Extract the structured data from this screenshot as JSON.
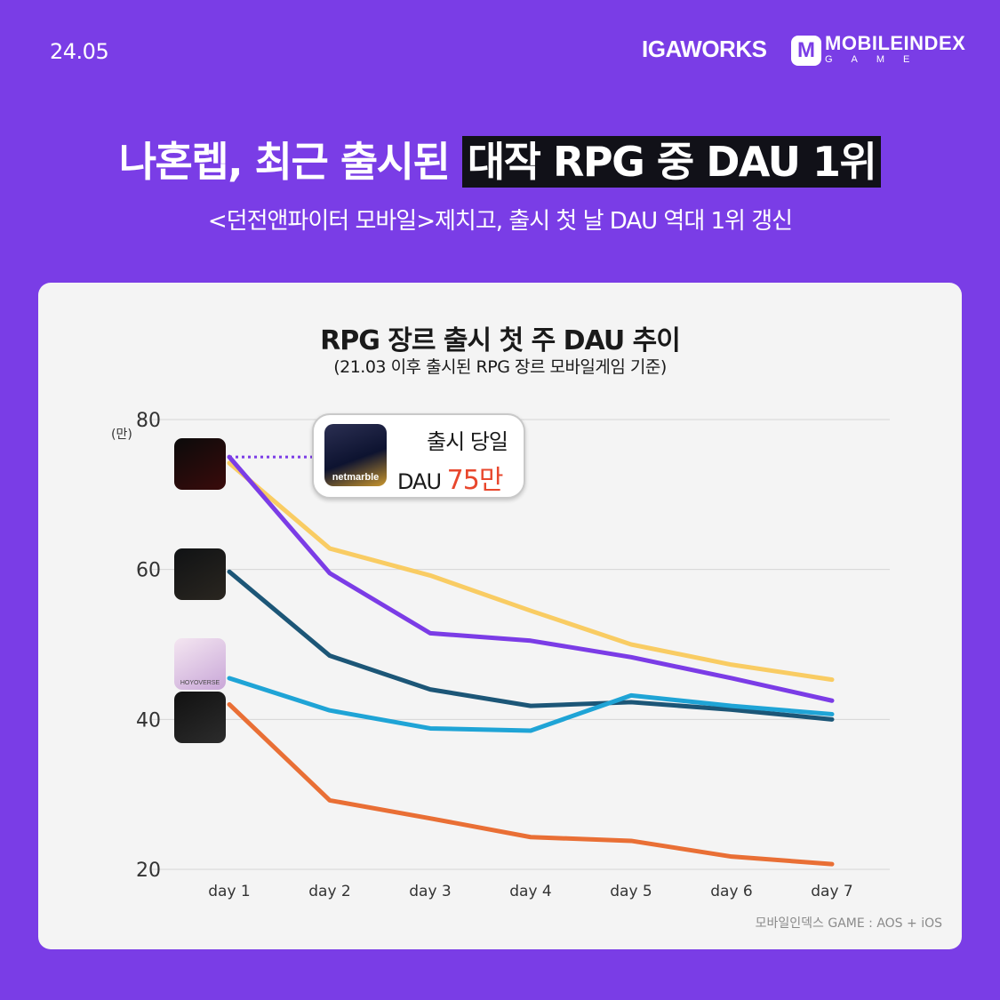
{
  "header": {
    "date": "24.05",
    "brand_iga": "IGAWORKS",
    "brand_mi_logo": "M",
    "brand_mi": "MOBILEINDEX",
    "brand_mi_sub": "GAME"
  },
  "headline": {
    "part1": "나혼렙, 최근 출시된 ",
    "highlight": "대작 RPG 중 DAU 1위"
  },
  "subhead": "<던전앤파이터 모바일>제치고, 출시 첫 날 DAU 역대 1위 갱신",
  "callout": {
    "line1": "출시 당일",
    "line2_prefix": "DAU ",
    "line2_value": "75만",
    "icon_label": "netmarble"
  },
  "icons": [
    {
      "name": "dungeon-fighter-icon",
      "label": "",
      "colors": [
        "#0b0b0b",
        "#3a0b0b"
      ]
    },
    {
      "name": "odin-icon",
      "label": "",
      "colors": [
        "#101214",
        "#2a2620"
      ]
    },
    {
      "name": "hoyoverse-icon",
      "label": "HOYOVERSE",
      "colors": [
        "#f4e6f1",
        "#c9a7d8"
      ]
    },
    {
      "name": "lineage-w-icon",
      "label": "",
      "colors": [
        "#111111",
        "#2c2c2c"
      ]
    }
  ],
  "source": "모바일인덱스 GAME : AOS + iOS",
  "chart_data": {
    "type": "line",
    "title": "RPG 장르 출시 첫 주 DAU 추이",
    "subtitle": "(21.03 이후 출시된 RPG 장르 모바일게임 기준)",
    "unit": "(만)",
    "categories": [
      "day 1",
      "day 2",
      "day 3",
      "day 4",
      "day 5",
      "day 6",
      "day 7"
    ],
    "ylim": [
      20,
      80
    ],
    "yticks": [
      20,
      40,
      60,
      80
    ],
    "grid": true,
    "series": [
      {
        "color": "#f9cc63",
        "values": [
          74.2,
          62.8,
          59.2,
          54.5,
          50.0,
          47.3,
          45.3
        ]
      },
      {
        "color": "#7b3ce6",
        "values": [
          75.0,
          59.5,
          51.5,
          50.5,
          48.3,
          45.5,
          42.5
        ]
      },
      {
        "color": "#1c5677",
        "values": [
          59.7,
          48.5,
          44.0,
          41.8,
          42.3,
          41.3,
          40.0
        ]
      },
      {
        "color": "#1fa4d6",
        "values": [
          45.5,
          41.2,
          38.8,
          38.5,
          43.2,
          41.8,
          40.7
        ]
      },
      {
        "color": "#e96f35",
        "values": [
          42.0,
          29.2,
          26.8,
          24.3,
          23.8,
          21.7,
          20.7
        ]
      }
    ]
  }
}
